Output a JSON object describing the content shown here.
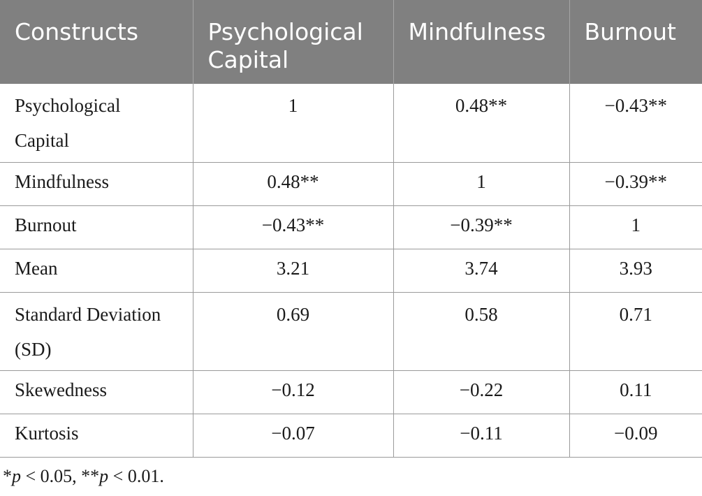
{
  "table": {
    "headers": [
      {
        "line1": "Constructs",
        "line2": ""
      },
      {
        "line1": "Psychological",
        "line2": "Capital"
      },
      {
        "line1": "Mindfulness",
        "line2": ""
      },
      {
        "line1": "Burnout",
        "line2": ""
      }
    ],
    "rows": [
      {
        "label_line1": "Psychological",
        "label_line2": "Capital",
        "values": [
          "1",
          "0.48**",
          "−0.43**"
        ]
      },
      {
        "label_line1": "Mindfulness",
        "label_line2": "",
        "values": [
          "0.48**",
          "1",
          "−0.39**"
        ]
      },
      {
        "label_line1": "Burnout",
        "label_line2": "",
        "values": [
          "−0.43**",
          "−0.39**",
          "1"
        ]
      },
      {
        "label_line1": "Mean",
        "label_line2": "",
        "values": [
          "3.21",
          "3.74",
          "3.93"
        ]
      },
      {
        "label_line1": "Standard Deviation",
        "label_line2": "(SD)",
        "values": [
          "0.69",
          "0.58",
          "0.71"
        ]
      },
      {
        "label_line1": "Skewedness",
        "label_line2": "",
        "values": [
          "−0.12",
          "−0.22",
          "0.11"
        ]
      },
      {
        "label_line1": "Kurtosis",
        "label_line2": "",
        "values": [
          "−0.07",
          "−0.11",
          "−0.09"
        ]
      }
    ]
  },
  "footnote": {
    "star1": "*",
    "p1": "p",
    "cond1": " < 0.05, ",
    "star2": "**",
    "p2": "p",
    "cond2": " < 0.01."
  }
}
